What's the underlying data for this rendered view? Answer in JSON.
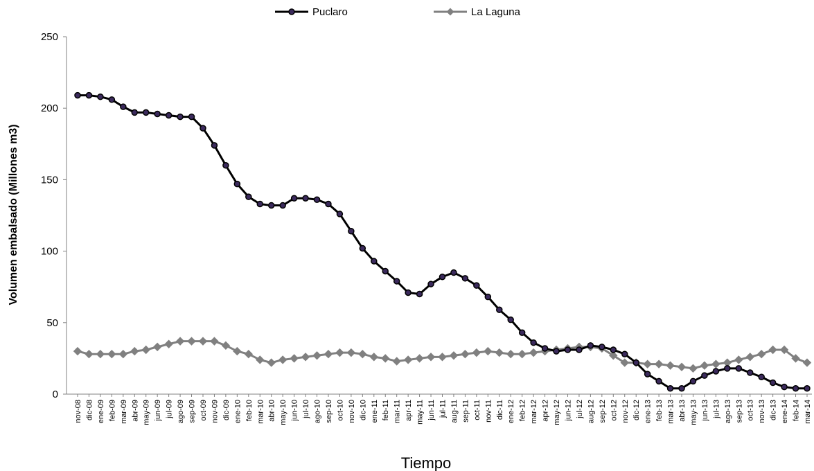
{
  "chart_data": {
    "type": "line",
    "title": "",
    "xlabel": "Tiempo",
    "ylabel": "Volumen embalsado (Millones m3)",
    "ylim": [
      0,
      250
    ],
    "yticks": [
      0,
      50,
      100,
      150,
      200,
      250
    ],
    "grid": false,
    "legend_position": "top",
    "categories": [
      "nov-08",
      "dic-08",
      "ene-09",
      "feb-09",
      "mar-09",
      "abr-09",
      "may-09",
      "jun-09",
      "jul-09",
      "ago-09",
      "sep-09",
      "oct-09",
      "nov-09",
      "dic-09",
      "ene-10",
      "feb-10",
      "mar-10",
      "abr-10",
      "may-10",
      "jun-10",
      "jul-10",
      "ago-10",
      "sep-10",
      "oct-10",
      "nov-10",
      "dic-10",
      "ene-11",
      "feb-11",
      "mar-11",
      "apr-11",
      "may-11",
      "jun-11",
      "jul-11",
      "aug-11",
      "sep-11",
      "oct-11",
      "nov-11",
      "dic-11",
      "ene-12",
      "feb-12",
      "mar-12",
      "apr-12",
      "may-12",
      "jun-12",
      "jul-12",
      "aug-12",
      "sep-12",
      "oct-12",
      "nov-12",
      "dic-12",
      "ene-13",
      "feb-13",
      "mar-13",
      "abr-13",
      "may-13",
      "jun-13",
      "jul-13",
      "ago-13",
      "sep-13",
      "oct-13",
      "nov-13",
      "dic-13",
      "ene-14",
      "feb-14",
      "mar-14"
    ],
    "series": [
      {
        "name": "Puclaro",
        "color": "#000000",
        "marker_fill": "#3b2a5c",
        "marker": "circle",
        "values": [
          209,
          209,
          208,
          206,
          201,
          197,
          197,
          196,
          195,
          194,
          194,
          186,
          174,
          160,
          147,
          138,
          133,
          132,
          132,
          137,
          137,
          136,
          133,
          126,
          114,
          102,
          93,
          86,
          79,
          71,
          70,
          77,
          82,
          85,
          81,
          76,
          68,
          59,
          52,
          43,
          36,
          32,
          30,
          31,
          31,
          34,
          33,
          31,
          28,
          22,
          14,
          9,
          4,
          4,
          9,
          13,
          16,
          18,
          18,
          15,
          12,
          8,
          5,
          4,
          4
        ]
      },
      {
        "name": "La Laguna",
        "color": "#808080",
        "marker_fill": "#808080",
        "marker": "diamond",
        "values": [
          30,
          28,
          28,
          28,
          28,
          30,
          31,
          33,
          35,
          37,
          37,
          37,
          37,
          34,
          30,
          28,
          24,
          22,
          24,
          25,
          26,
          27,
          28,
          29,
          29,
          28,
          26,
          25,
          23,
          24,
          25,
          26,
          26,
          27,
          28,
          29,
          30,
          29,
          28,
          28,
          29,
          30,
          31,
          32,
          33,
          33,
          32,
          27,
          22,
          22,
          21,
          21,
          20,
          19,
          18,
          20,
          21,
          22,
          24,
          26,
          28,
          31,
          31,
          25,
          22
        ]
      }
    ]
  }
}
